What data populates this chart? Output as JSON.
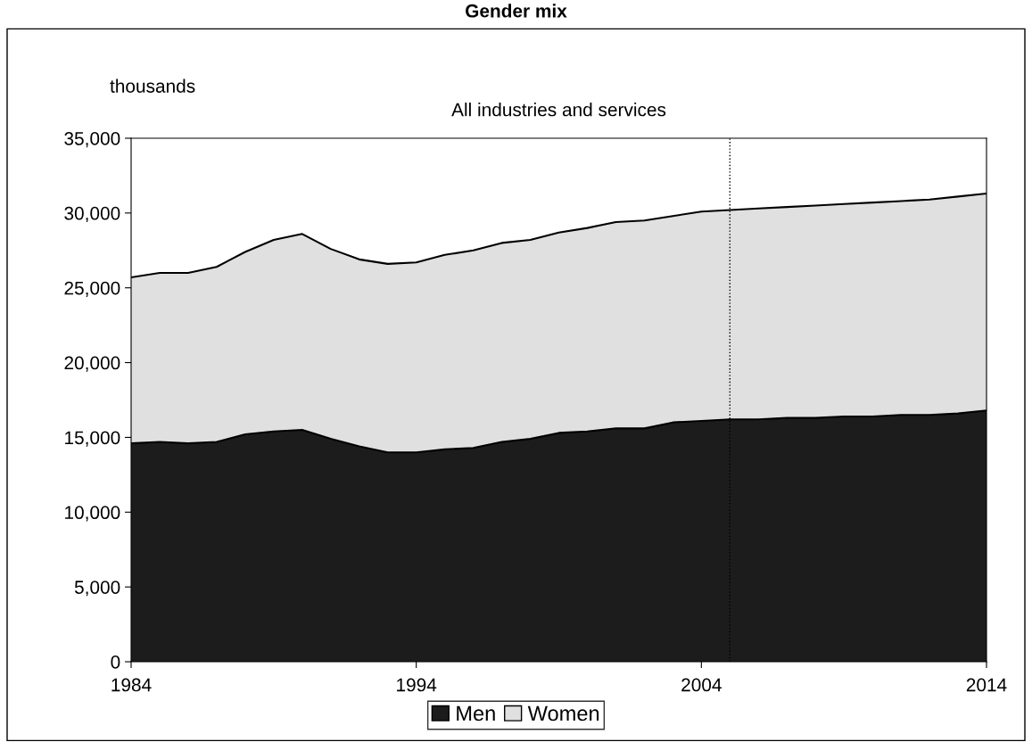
{
  "chart_data": {
    "type": "area",
    "stacked": true,
    "title": "Gender mix",
    "subtitle": "All industries and services",
    "ylabel": "thousands",
    "x": [
      1984,
      1985,
      1986,
      1987,
      1988,
      1989,
      1990,
      1991,
      1992,
      1993,
      1994,
      1995,
      1996,
      1997,
      1998,
      1999,
      2000,
      2001,
      2002,
      2003,
      2004,
      2005,
      2006,
      2007,
      2008,
      2009,
      2010,
      2011,
      2012,
      2013,
      2014
    ],
    "series": [
      {
        "name": "Men",
        "color": "#1c1c1c",
        "values": [
          14600,
          14700,
          14600,
          14700,
          15200,
          15400,
          15500,
          14900,
          14400,
          14000,
          14000,
          14200,
          14300,
          14700,
          14900,
          15300,
          15400,
          15600,
          15600,
          16000,
          16100,
          16200,
          16200,
          16300,
          16300,
          16400,
          16400,
          16500,
          16500,
          16600,
          16800
        ]
      },
      {
        "name": "Women",
        "color": "#e0e0e0",
        "values": [
          11100,
          11300,
          11400,
          11700,
          12200,
          12800,
          13100,
          12700,
          12500,
          12600,
          12700,
          13000,
          13200,
          13300,
          13300,
          13400,
          13600,
          13800,
          13900,
          13800,
          14000,
          14000,
          14100,
          14100,
          14200,
          14200,
          14300,
          14300,
          14400,
          14500,
          14500
        ]
      }
    ],
    "xlim": [
      1984,
      2014
    ],
    "xticks": [
      1984,
      1994,
      2004,
      2014
    ],
    "ylim": [
      0,
      35000
    ],
    "yticks": [
      {
        "value": 0,
        "label": "0"
      },
      {
        "value": 5000,
        "label": "5,000"
      },
      {
        "value": 10000,
        "label": "10,000"
      },
      {
        "value": 15000,
        "label": "15,000"
      },
      {
        "value": 20000,
        "label": "20,000"
      },
      {
        "value": 25000,
        "label": "25,000"
      },
      {
        "value": 30000,
        "label": "30,000"
      },
      {
        "value": 35000,
        "label": "35,000"
      }
    ],
    "ref_lines": [
      {
        "axis": "x",
        "value": 2005,
        "label": null,
        "color": "#000000",
        "line_style": "dotted"
      }
    ],
    "grid": false,
    "legend": "bottom"
  }
}
